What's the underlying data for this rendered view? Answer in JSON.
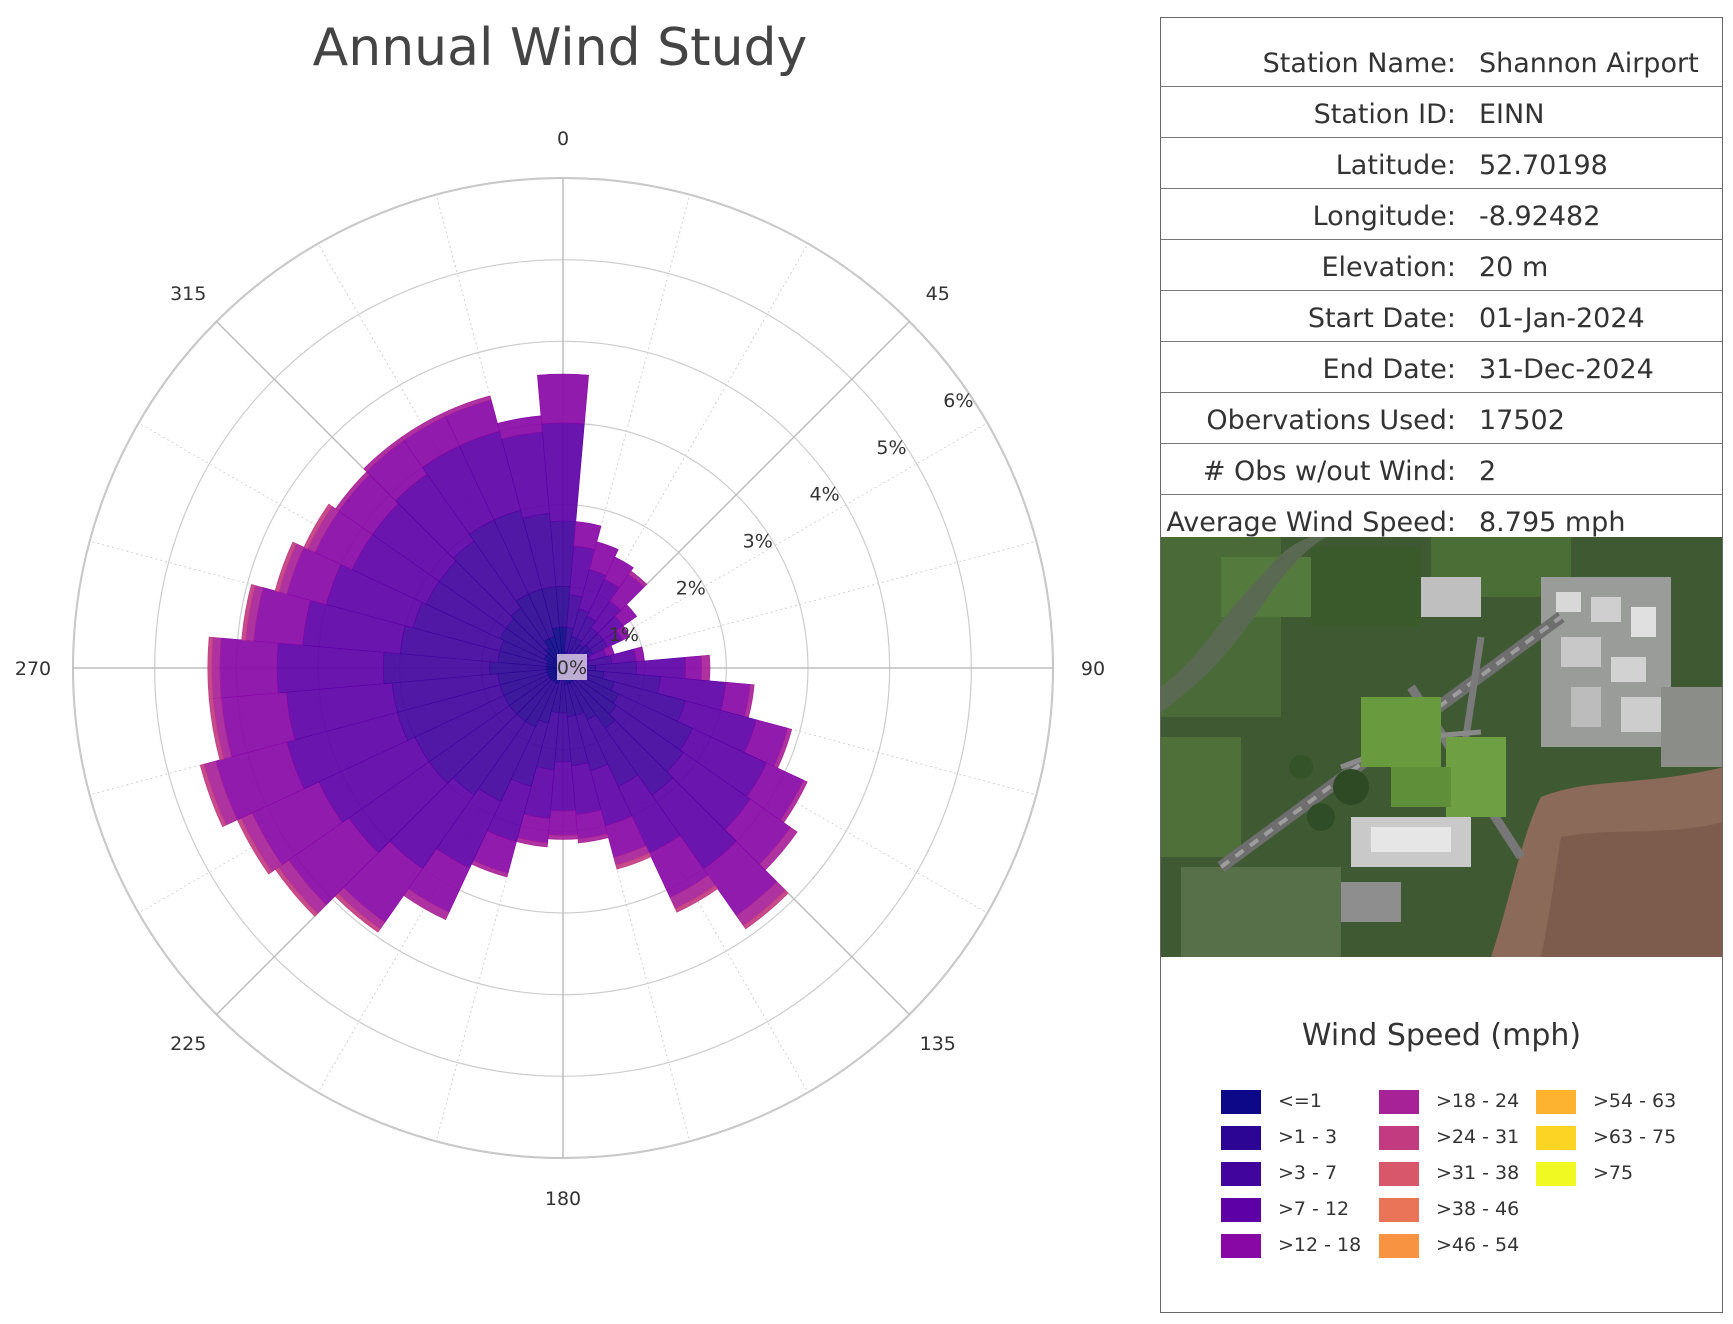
{
  "chart_data": {
    "type": "polar-bar",
    "title": "Annual Wind Study",
    "direction_labels": [
      "0",
      "45",
      "90",
      "135",
      "180",
      "225",
      "270",
      "315"
    ],
    "radial_tick_labels": [
      "0%",
      "1%",
      "2%",
      "3%",
      "4%",
      "5%",
      "6%"
    ],
    "rmax": 6,
    "grid": true,
    "directions_deg": [
      0,
      10,
      20,
      30,
      40,
      50,
      60,
      70,
      80,
      90,
      100,
      110,
      120,
      130,
      140,
      150,
      160,
      170,
      180,
      190,
      200,
      210,
      220,
      230,
      240,
      250,
      260,
      270,
      280,
      290,
      300,
      310,
      320,
      330,
      340,
      350
    ],
    "speed_bins": [
      "<=1",
      ">1 - 3",
      ">3 - 7",
      ">7 - 12",
      ">12 - 18",
      ">18 - 24",
      ">24 - 31",
      ">31 - 38",
      ">38 - 46",
      ">46 - 54",
      ">54 - 63",
      ">63 - 75",
      ">75"
    ],
    "frequency_pct_by_bin": [
      [
        0.5,
        0.2,
        0.15,
        0.15,
        0.15,
        0.2,
        0.2,
        0.1,
        0.1,
        0.1,
        0.1,
        0.15,
        0.15,
        0.2,
        0.2,
        0.2,
        0.2,
        0.2,
        0.15,
        0.15,
        0.2,
        0.2,
        0.2,
        0.2,
        0.2,
        0.2,
        0.2,
        0.2,
        0.2,
        0.2,
        0.25,
        0.25,
        0.3,
        0.4,
        0.4,
        0.5
      ],
      [
        0.5,
        0.3,
        0.25,
        0.25,
        0.2,
        0.2,
        0.2,
        0.15,
        0.2,
        0.3,
        0.4,
        0.5,
        0.6,
        0.6,
        0.7,
        0.5,
        0.4,
        0.4,
        0.4,
        0.4,
        0.5,
        0.6,
        0.6,
        0.6,
        0.6,
        0.6,
        0.6,
        0.7,
        0.6,
        0.6,
        0.6,
        0.6,
        0.6,
        0.6,
        0.6,
        0.5
      ],
      [
        0.8,
        0.4,
        0.35,
        0.3,
        0.25,
        0.2,
        0.2,
        0.1,
        0.3,
        0.5,
        0.7,
        0.9,
        1.0,
        1.0,
        1.0,
        0.9,
        0.7,
        0.6,
        0.6,
        0.7,
        0.8,
        1.0,
        1.1,
        1.2,
        1.2,
        1.3,
        1.3,
        1.3,
        1.2,
        1.1,
        1.0,
        1.0,
        1.0,
        1.0,
        1.0,
        0.9
      ],
      [
        1.2,
        0.6,
        0.5,
        0.5,
        0.4,
        0.3,
        0.2,
        0.2,
        0.3,
        0.6,
        0.8,
        0.9,
        1.0,
        1.0,
        1.1,
        0.9,
        0.7,
        0.6,
        0.6,
        0.6,
        0.7,
        0.9,
        1.1,
        1.2,
        1.3,
        1.4,
        1.3,
        1.3,
        1.2,
        1.1,
        1.0,
        1.0,
        1.0,
        1.0,
        1.0,
        1.0
      ],
      [
        0.6,
        0.3,
        0.35,
        0.3,
        0.4,
        0.2,
        0.1,
        0.1,
        0.1,
        0.2,
        0.3,
        0.4,
        0.5,
        0.6,
        0.7,
        0.6,
        0.4,
        0.3,
        0.3,
        0.3,
        0.4,
        0.6,
        0.8,
        0.9,
        0.9,
        0.9,
        0.8,
        0.7,
        0.6,
        0.5,
        0.5,
        0.5,
        0.5,
        0.4,
        0.4,
        0.2
      ],
      [
        0.0,
        0.0,
        0.0,
        0.0,
        0.05,
        0.0,
        0.0,
        0.0,
        0.0,
        0.1,
        0.05,
        0.05,
        0.05,
        0.1,
        0.15,
        0.15,
        0.1,
        0.05,
        0.05,
        0.05,
        0.05,
        0.1,
        0.1,
        0.15,
        0.15,
        0.15,
        0.1,
        0.1,
        0.1,
        0.1,
        0.1,
        0.05,
        0.05,
        0.05,
        0.05,
        0.0
      ],
      [
        0,
        0,
        0,
        0,
        0,
        0,
        0,
        0,
        0,
        0,
        0,
        0,
        0,
        0,
        0.05,
        0.05,
        0.05,
        0,
        0,
        0,
        0,
        0,
        0.05,
        0.05,
        0.05,
        0.05,
        0.05,
        0.05,
        0.05,
        0.05,
        0.05,
        0,
        0,
        0,
        0,
        0
      ],
      [
        0,
        0,
        0,
        0,
        0,
        0,
        0,
        0,
        0,
        0,
        0,
        0,
        0,
        0,
        0,
        0,
        0,
        0,
        0,
        0,
        0,
        0,
        0,
        0,
        0,
        0,
        0,
        0,
        0,
        0,
        0,
        0,
        0,
        0,
        0,
        0
      ],
      [
        0,
        0,
        0,
        0,
        0,
        0,
        0,
        0,
        0,
        0,
        0,
        0,
        0,
        0,
        0,
        0,
        0,
        0,
        0,
        0,
        0,
        0,
        0,
        0,
        0,
        0,
        0,
        0,
        0,
        0,
        0,
        0,
        0,
        0,
        0,
        0
      ],
      [
        0,
        0,
        0,
        0,
        0,
        0,
        0,
        0,
        0,
        0,
        0,
        0,
        0,
        0,
        0,
        0,
        0,
        0,
        0,
        0,
        0,
        0,
        0,
        0,
        0,
        0,
        0,
        0,
        0,
        0,
        0,
        0,
        0,
        0,
        0,
        0
      ],
      [
        0,
        0,
        0,
        0,
        0,
        0,
        0,
        0,
        0,
        0,
        0,
        0,
        0,
        0,
        0,
        0,
        0,
        0,
        0,
        0,
        0,
        0,
        0,
        0,
        0,
        0,
        0,
        0,
        0,
        0,
        0,
        0,
        0,
        0,
        0,
        0
      ],
      [
        0,
        0,
        0,
        0,
        0,
        0,
        0,
        0,
        0,
        0,
        0,
        0,
        0,
        0,
        0,
        0,
        0,
        0,
        0,
        0,
        0,
        0,
        0,
        0,
        0,
        0,
        0,
        0,
        0,
        0,
        0,
        0,
        0,
        0,
        0,
        0
      ],
      [
        0,
        0,
        0,
        0,
        0,
        0,
        0,
        0,
        0,
        0,
        0,
        0,
        0,
        0,
        0,
        0,
        0,
        0,
        0,
        0,
        0,
        0,
        0,
        0,
        0,
        0,
        0,
        0,
        0,
        0,
        0,
        0,
        0,
        0,
        0,
        0
      ]
    ]
  },
  "station_info": [
    {
      "label": "Station Name:",
      "value": "Shannon Airport"
    },
    {
      "label": "Station ID:",
      "value": "EINN"
    },
    {
      "label": "Latitude:",
      "value": "52.70198"
    },
    {
      "label": "Longitude:",
      "value": "-8.92482"
    },
    {
      "label": "Elevation:",
      "value": "20 m"
    },
    {
      "label": "Start Date:",
      "value": "01-Jan-2024"
    },
    {
      "label": "End Date:",
      "value": "31-Dec-2024"
    },
    {
      "label": "Obervations Used:",
      "value": "17502"
    },
    {
      "label": "# Obs w/out Wind:",
      "value": "2"
    },
    {
      "label": "Average Wind Speed:",
      "value": "8.795 mph"
    }
  ],
  "legend": {
    "title": "Wind Speed (mph)",
    "items": [
      {
        "label": "<=1",
        "color": "#0d0887"
      },
      {
        "label": ">1 - 3",
        "color": "#2c0594"
      },
      {
        "label": ">3 - 7",
        "color": "#41049d"
      },
      {
        "label": ">7 - 12",
        "color": "#5d01a6"
      },
      {
        "label": ">12 - 18",
        "color": "#8808a6"
      },
      {
        "label": ">18 - 24",
        "color": "#a72197"
      },
      {
        "label": ">24 - 31",
        "color": "#c23b81"
      },
      {
        "label": ">31 - 38",
        "color": "#d8576b"
      },
      {
        "label": ">38 - 46",
        "color": "#ea7457"
      },
      {
        "label": ">46 - 54",
        "color": "#f89441"
      },
      {
        "label": ">54 - 63",
        "color": "#fdb32f"
      },
      {
        "label": ">63 - 75",
        "color": "#fbd424"
      },
      {
        "label": ">75",
        "color": "#f0f921"
      }
    ]
  }
}
